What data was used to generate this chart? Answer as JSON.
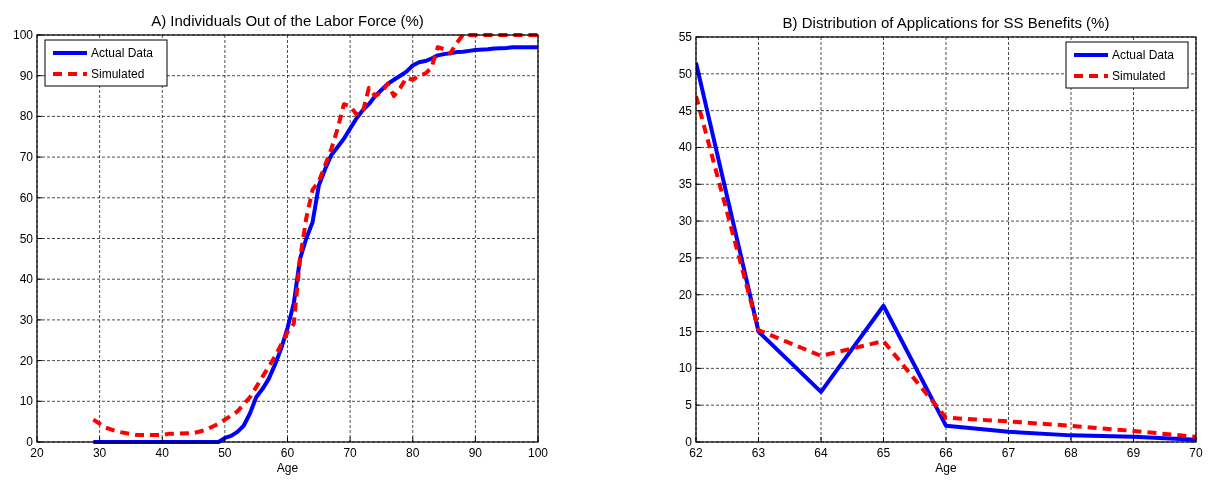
{
  "chart_data": [
    {
      "type": "line",
      "title": "A) Individuals Out of the Labor Force (%)",
      "xlabel": "Age",
      "xlim": [
        20,
        100
      ],
      "xticks": [
        20,
        30,
        40,
        50,
        60,
        70,
        80,
        90,
        100
      ],
      "ylim": [
        0,
        100
      ],
      "yticks": [
        0,
        10,
        20,
        30,
        40,
        50,
        60,
        70,
        80,
        90,
        100
      ],
      "grid": true,
      "legend": "top left",
      "series": [
        {
          "name": "Actual Data",
          "color": "#0000ff",
          "line_style": "solid",
          "x": [
            29,
            35,
            40,
            45,
            49,
            50,
            51,
            52,
            53,
            54,
            55,
            56,
            57,
            58,
            59,
            60,
            61,
            62,
            63,
            64,
            65,
            66,
            67,
            68,
            69,
            70,
            71,
            72,
            73,
            74,
            75,
            76,
            77,
            78,
            79,
            80,
            81,
            82,
            83,
            84,
            85,
            86,
            87,
            88,
            89,
            90,
            92,
            93,
            95,
            96,
            100
          ],
          "values": [
            0,
            0,
            0,
            0,
            0,
            1,
            1.5,
            2.5,
            4,
            7,
            11,
            13,
            15.5,
            19,
            23,
            28,
            34,
            45,
            50,
            54,
            63,
            67,
            70.5,
            72.5,
            74.5,
            77,
            79.5,
            81.5,
            83,
            85,
            86.5,
            88,
            89,
            90,
            91,
            92.5,
            93.3,
            93.6,
            94.2,
            95,
            95.3,
            95.5,
            95.8,
            95.9,
            96.1,
            96.3,
            96.5,
            96.7,
            96.8,
            97,
            97
          ]
        },
        {
          "name": "Simulated",
          "color": "#ff0000",
          "line_style": "dashed",
          "x": [
            29,
            31,
            33,
            36,
            40,
            41,
            45,
            47,
            49,
            50,
            52,
            54,
            56,
            58,
            60,
            61,
            62,
            63,
            64,
            65,
            66,
            67,
            68,
            69,
            70,
            71,
            72,
            73,
            74,
            75,
            76,
            77,
            78,
            79,
            80,
            81,
            82,
            83,
            84,
            85,
            86,
            87,
            88,
            100
          ],
          "values": [
            5.5,
            3.5,
            2.5,
            1.7,
            1.7,
            2,
            2.2,
            3,
            4.5,
            5.5,
            7.5,
            11,
            16,
            21,
            27,
            29,
            45,
            55,
            62,
            64,
            68,
            72,
            77,
            83,
            82.5,
            80.5,
            81,
            87,
            85,
            86,
            88,
            85,
            87,
            89.5,
            89,
            90,
            90.5,
            92,
            97,
            96.5,
            95.5,
            98,
            100,
            100
          ]
        }
      ]
    },
    {
      "type": "line",
      "title": "B) Distribution of Applications for SS Benefits (%)",
      "xlabel": "Age",
      "xlim": [
        62,
        70
      ],
      "xticks": [
        62,
        63,
        64,
        65,
        66,
        67,
        68,
        69,
        70
      ],
      "ylim": [
        0,
        55
      ],
      "yticks": [
        0,
        5,
        10,
        15,
        20,
        25,
        30,
        35,
        40,
        45,
        50,
        55
      ],
      "grid": true,
      "legend": "top right",
      "series": [
        {
          "name": "Actual Data",
          "color": "#0000ff",
          "line_style": "solid",
          "x": [
            62,
            63,
            64,
            65,
            66,
            67,
            68,
            69,
            70
          ],
          "values": [
            51.5,
            15,
            6.8,
            18.5,
            2.2,
            1.4,
            0.9,
            0.7,
            0.3
          ]
        },
        {
          "name": "Simulated",
          "color": "#ff0000",
          "line_style": "dashed",
          "x": [
            62,
            63,
            64,
            65,
            66,
            67,
            68,
            69,
            70
          ],
          "values": [
            47,
            15.2,
            11.7,
            13.7,
            3.3,
            2.8,
            2.2,
            1.5,
            0.7
          ]
        }
      ]
    }
  ]
}
